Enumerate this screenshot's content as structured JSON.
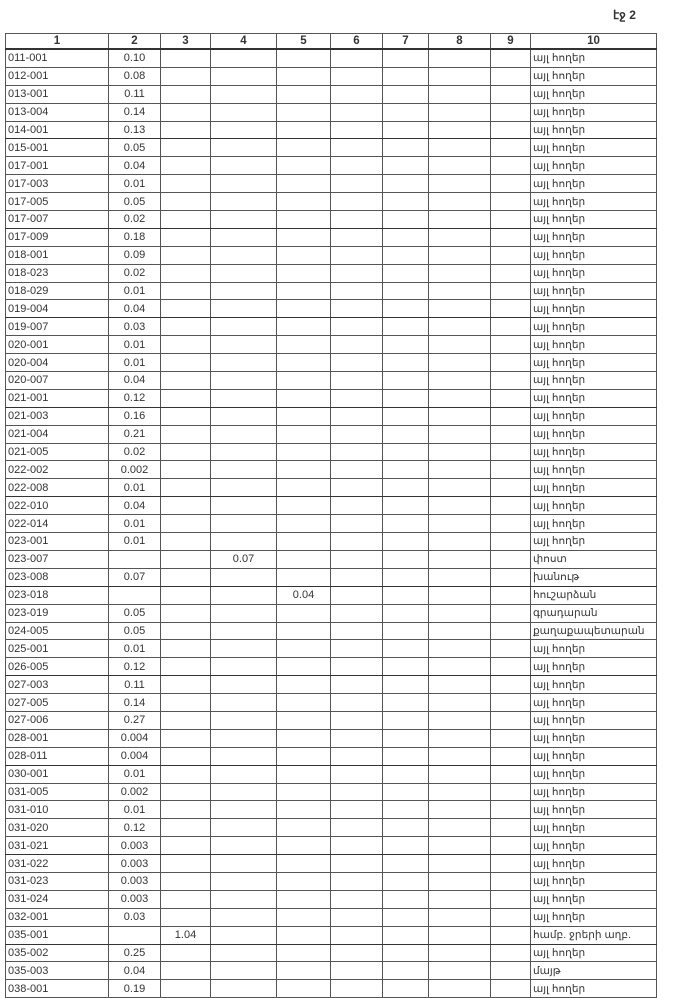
{
  "page_label": "էջ 2",
  "headers": [
    "1",
    "2",
    "3",
    "4",
    "5",
    "6",
    "7",
    "8",
    "9",
    "10"
  ],
  "rows": [
    [
      "011-001",
      "0.10",
      "",
      "",
      "",
      "",
      "",
      "",
      "",
      "այլ հողեր"
    ],
    [
      "012-001",
      "0.08",
      "",
      "",
      "",
      "",
      "",
      "",
      "",
      "այլ հողեր"
    ],
    [
      "013-001",
      "0.11",
      "",
      "",
      "",
      "",
      "",
      "",
      "",
      "այլ հողեր"
    ],
    [
      "013-004",
      "0.14",
      "",
      "",
      "",
      "",
      "",
      "",
      "",
      "այլ հողեր"
    ],
    [
      "014-001",
      "0.13",
      "",
      "",
      "",
      "",
      "",
      "",
      "",
      "այլ հողեր"
    ],
    [
      "015-001",
      "0.05",
      "",
      "",
      "",
      "",
      "",
      "",
      "",
      "այլ հողեր"
    ],
    [
      "017-001",
      "0.04",
      "",
      "",
      "",
      "",
      "",
      "",
      "",
      "այլ հողեր"
    ],
    [
      "017-003",
      "0.01",
      "",
      "",
      "",
      "",
      "",
      "",
      "",
      "այլ հողեր"
    ],
    [
      "017-005",
      "0.05",
      "",
      "",
      "",
      "",
      "",
      "",
      "",
      "այլ հողեր"
    ],
    [
      "017-007",
      "0.02",
      "",
      "",
      "",
      "",
      "",
      "",
      "",
      "այլ հողեր"
    ],
    [
      "017-009",
      "0.18",
      "",
      "",
      "",
      "",
      "",
      "",
      "",
      "այլ հողեր"
    ],
    [
      "018-001",
      "0.09",
      "",
      "",
      "",
      "",
      "",
      "",
      "",
      "այլ հողեր"
    ],
    [
      "018-023",
      "0.02",
      "",
      "",
      "",
      "",
      "",
      "",
      "",
      "այլ հողեր"
    ],
    [
      "018-029",
      "0.01",
      "",
      "",
      "",
      "",
      "",
      "",
      "",
      "այլ հողեր"
    ],
    [
      "019-004",
      "0.04",
      "",
      "",
      "",
      "",
      "",
      "",
      "",
      "այլ հողեր"
    ],
    [
      "019-007",
      "0.03",
      "",
      "",
      "",
      "",
      "",
      "",
      "",
      "այլ հողեր"
    ],
    [
      "020-001",
      "0.01",
      "",
      "",
      "",
      "",
      "",
      "",
      "",
      "այլ հողեր"
    ],
    [
      "020-004",
      "0.01",
      "",
      "",
      "",
      "",
      "",
      "",
      "",
      "այլ հողեր"
    ],
    [
      "020-007",
      "0.04",
      "",
      "",
      "",
      "",
      "",
      "",
      "",
      "այլ հողեր"
    ],
    [
      "021-001",
      "0.12",
      "",
      "",
      "",
      "",
      "",
      "",
      "",
      "այլ հողեր"
    ],
    [
      "021-003",
      "0.16",
      "",
      "",
      "",
      "",
      "",
      "",
      "",
      "այլ հողեր"
    ],
    [
      "021-004",
      "0.21",
      "",
      "",
      "",
      "",
      "",
      "",
      "",
      "այլ հողեր"
    ],
    [
      "021-005",
      "0.02",
      "",
      "",
      "",
      "",
      "",
      "",
      "",
      "այլ հողեր"
    ],
    [
      "022-002",
      "0.002",
      "",
      "",
      "",
      "",
      "",
      "",
      "",
      "այլ հողեր"
    ],
    [
      "022-008",
      "0.01",
      "",
      "",
      "",
      "",
      "",
      "",
      "",
      "այլ հողեր"
    ],
    [
      "022-010",
      "0.04",
      "",
      "",
      "",
      "",
      "",
      "",
      "",
      "այլ հողեր"
    ],
    [
      "022-014",
      "0.01",
      "",
      "",
      "",
      "",
      "",
      "",
      "",
      "այլ հողեր"
    ],
    [
      "023-001",
      "0.01",
      "",
      "",
      "",
      "",
      "",
      "",
      "",
      "այլ հողեր"
    ],
    [
      "023-007",
      "",
      "",
      "0.07",
      "",
      "",
      "",
      "",
      "",
      "փոստ"
    ],
    [
      "023-008",
      "0.07",
      "",
      "",
      "",
      "",
      "",
      "",
      "",
      "խանութ"
    ],
    [
      "023-018",
      "",
      "",
      "",
      "0.04",
      "",
      "",
      "",
      "",
      "հուշարձան"
    ],
    [
      "023-019",
      "0.05",
      "",
      "",
      "",
      "",
      "",
      "",
      "",
      "գրադարան"
    ],
    [
      "024-005",
      "0.05",
      "",
      "",
      "",
      "",
      "",
      "",
      "",
      "քաղաքապետարան"
    ],
    [
      "025-001",
      "0.01",
      "",
      "",
      "",
      "",
      "",
      "",
      "",
      "այլ հողեր"
    ],
    [
      "026-005",
      "0.12",
      "",
      "",
      "",
      "",
      "",
      "",
      "",
      "այլ հողեր"
    ],
    [
      "027-003",
      "0.11",
      "",
      "",
      "",
      "",
      "",
      "",
      "",
      "այլ հողեր"
    ],
    [
      "027-005",
      "0.14",
      "",
      "",
      "",
      "",
      "",
      "",
      "",
      "այլ հողեր"
    ],
    [
      "027-006",
      "0.27",
      "",
      "",
      "",
      "",
      "",
      "",
      "",
      "այլ հողեր"
    ],
    [
      "028-001",
      "0.004",
      "",
      "",
      "",
      "",
      "",
      "",
      "",
      "այլ հողեր"
    ],
    [
      "028-011",
      "0.004",
      "",
      "",
      "",
      "",
      "",
      "",
      "",
      "այլ հողեր"
    ],
    [
      "030-001",
      "0.01",
      "",
      "",
      "",
      "",
      "",
      "",
      "",
      "այլ հողեր"
    ],
    [
      "031-005",
      "0.002",
      "",
      "",
      "",
      "",
      "",
      "",
      "",
      "այլ հողեր"
    ],
    [
      "031-010",
      "0.01",
      "",
      "",
      "",
      "",
      "",
      "",
      "",
      "այլ հողեր"
    ],
    [
      "031-020",
      "0.12",
      "",
      "",
      "",
      "",
      "",
      "",
      "",
      "այլ հողեր"
    ],
    [
      "031-021",
      "0.003",
      "",
      "",
      "",
      "",
      "",
      "",
      "",
      "այլ հողեր"
    ],
    [
      "031-022",
      "0.003",
      "",
      "",
      "",
      "",
      "",
      "",
      "",
      "այլ հողեր"
    ],
    [
      "031-023",
      "0.003",
      "",
      "",
      "",
      "",
      "",
      "",
      "",
      "այլ հողեր"
    ],
    [
      "031-024",
      "0.003",
      "",
      "",
      "",
      "",
      "",
      "",
      "",
      "այլ հողեր"
    ],
    [
      "032-001",
      "0.03",
      "",
      "",
      "",
      "",
      "",
      "",
      "",
      "այլ հողեր"
    ],
    [
      "035-001",
      "",
      "1.04",
      "",
      "",
      "",
      "",
      "",
      "",
      "համբ. ջրերի աղբ."
    ],
    [
      "035-002",
      "0.25",
      "",
      "",
      "",
      "",
      "",
      "",
      "",
      "այլ հողեր"
    ],
    [
      "035-003",
      "0.04",
      "",
      "",
      "",
      "",
      "",
      "",
      "",
      "մայթ"
    ],
    [
      "038-001",
      "0.19",
      "",
      "",
      "",
      "",
      "",
      "",
      "",
      "այլ հողեր"
    ]
  ]
}
